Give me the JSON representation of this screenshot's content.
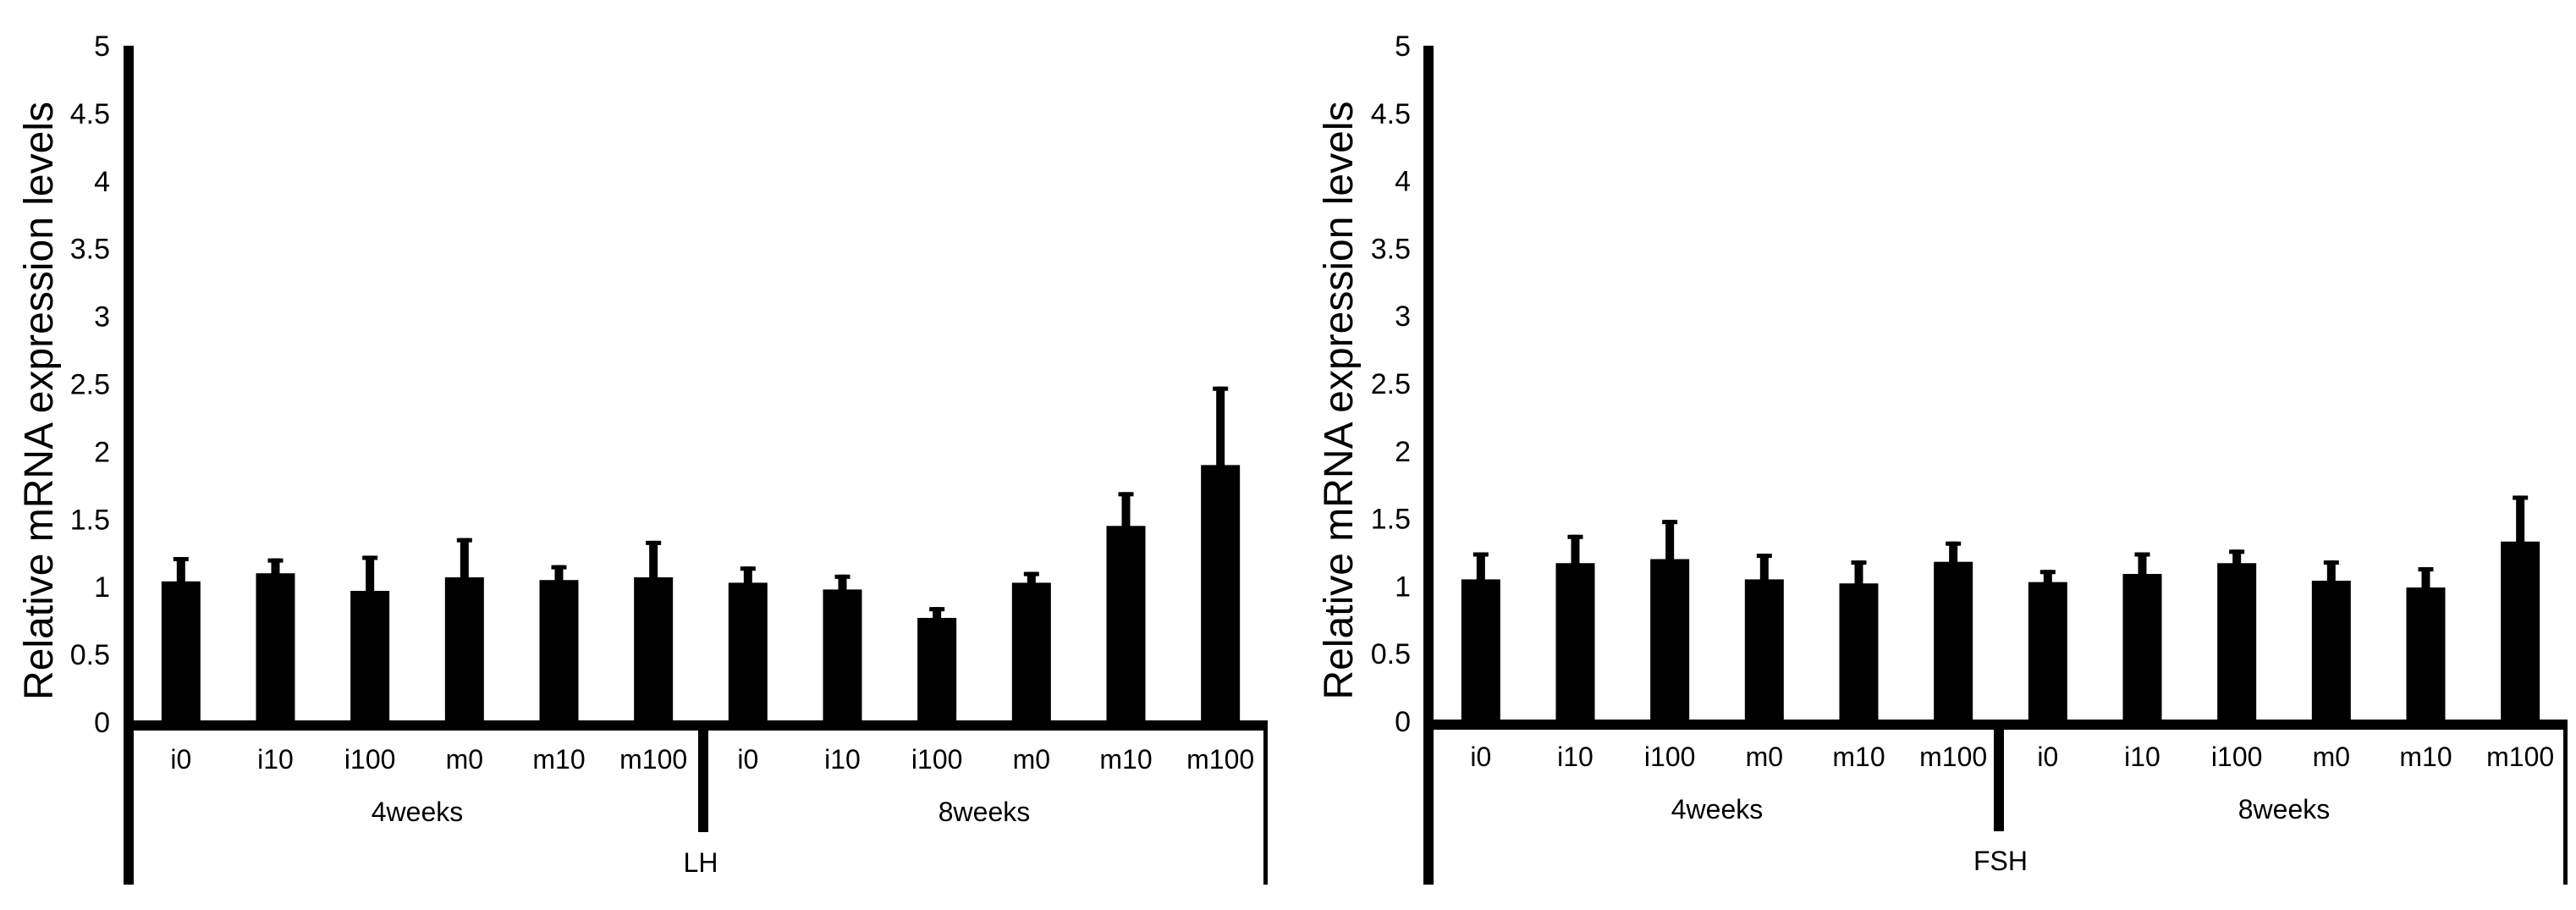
{
  "colors": {
    "bar": "#000000",
    "axis": "#000000",
    "text": "#000000",
    "background": "#ffffff"
  },
  "chart_data": [
    {
      "type": "bar",
      "title": "",
      "panel_label": "LH",
      "ylabel": "Relative mRNA expression levels",
      "xlabel": "",
      "ylim": [
        0,
        5
      ],
      "yticks": [
        "0",
        "0.5",
        "1",
        "1.5",
        "2",
        "2.5",
        "3",
        "3.5",
        "4",
        "4.5",
        "5"
      ],
      "groups": [
        {
          "label": "4weeks",
          "categories": [
            "i0",
            "i10",
            "i100",
            "m0",
            "m10",
            "m100"
          ],
          "values": [
            1.04,
            1.1,
            0.97,
            1.07,
            1.05,
            1.07
          ],
          "errors": [
            0.18,
            0.11,
            0.26,
            0.29,
            0.11,
            0.27
          ]
        },
        {
          "label": "8weeks",
          "categories": [
            "i0",
            "i10",
            "i100",
            "m0",
            "m10",
            "m100"
          ],
          "values": [
            1.03,
            0.98,
            0.77,
            1.03,
            1.45,
            1.9
          ],
          "errors": [
            0.12,
            0.11,
            0.08,
            0.08,
            0.25,
            0.58
          ]
        }
      ]
    },
    {
      "type": "bar",
      "title": "",
      "panel_label": "FSH",
      "ylabel": "Relative mRNA expression levels",
      "xlabel": "",
      "ylim": [
        0,
        5
      ],
      "yticks": [
        "0",
        "0.5",
        "1",
        "1.5",
        "2",
        "2.5",
        "3",
        "3.5",
        "4",
        "4.5",
        "5"
      ],
      "groups": [
        {
          "label": "4weeks",
          "categories": [
            "i0",
            "i10",
            "i100",
            "m0",
            "m10",
            "m100"
          ],
          "values": [
            1.05,
            1.17,
            1.2,
            1.05,
            1.02,
            1.18
          ],
          "errors": [
            0.2,
            0.21,
            0.29,
            0.19,
            0.17,
            0.15
          ]
        },
        {
          "label": "8weeks",
          "categories": [
            "i0",
            "i10",
            "i100",
            "m0",
            "m10",
            "m100"
          ],
          "values": [
            1.03,
            1.09,
            1.17,
            1.04,
            0.99,
            1.33
          ],
          "errors": [
            0.09,
            0.16,
            0.1,
            0.15,
            0.15,
            0.34
          ]
        }
      ]
    }
  ]
}
